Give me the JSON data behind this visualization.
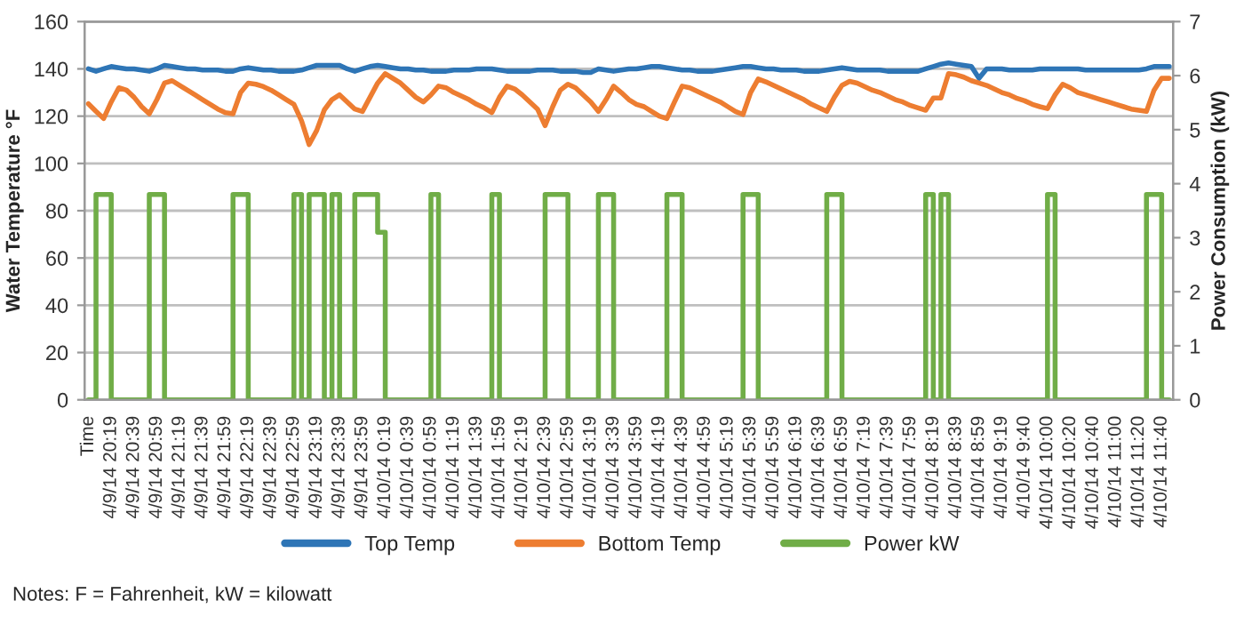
{
  "chart_data": {
    "type": "line",
    "ylabel": "Water Temperature °F",
    "y2label": "Power Consumption (kW)",
    "categories": [
      "Time",
      null,
      null,
      "4/9/14 20:19",
      null,
      null,
      "4/9/14 20:39",
      null,
      null,
      "4/9/14 20:59",
      null,
      null,
      "4/9/14 21:19",
      null,
      null,
      "4/9/14 21:39",
      null,
      null,
      "4/9/14 21:59",
      null,
      null,
      "4/9/14 22:19",
      null,
      null,
      "4/9/14 22:39",
      null,
      null,
      "4/9/14 22:59",
      null,
      null,
      "4/9/14 23:19",
      null,
      null,
      "4/9/14 23:39",
      null,
      null,
      "4/9/14 23:59",
      null,
      null,
      "4/10/14 0:19",
      null,
      null,
      "4/10/14 0:39",
      null,
      null,
      "4/10/14 0:59",
      null,
      null,
      "4/10/14 1:19",
      null,
      null,
      "4/10/14 1:39",
      null,
      null,
      "4/10/14 1:59",
      null,
      null,
      "4/10/14 2:19",
      null,
      null,
      "4/10/14 2:39",
      null,
      null,
      "4/10/14 2:59",
      null,
      null,
      "4/10/14 3:19",
      null,
      null,
      "4/10/14 3:39",
      null,
      null,
      "4/10/14 3:59",
      null,
      null,
      "4/10/14 4:19",
      null,
      null,
      "4/10/14 4:39",
      null,
      null,
      "4/10/14 4:59",
      null,
      null,
      "4/10/14 5:19",
      null,
      null,
      "4/10/14 5:39",
      null,
      null,
      "4/10/14 5:59",
      null,
      null,
      "4/10/14 6:19",
      null,
      null,
      "4/10/14 6:39",
      null,
      null,
      "4/10/14 6:59",
      null,
      null,
      "4/10/14 7:19",
      null,
      null,
      "4/10/14 7:39",
      null,
      null,
      "4/10/14 7:59",
      null,
      null,
      "4/10/14 8:19",
      null,
      null,
      "4/10/14 8:39",
      null,
      null,
      "4/10/14 8:59",
      null,
      null,
      "4/10/14 9:19",
      null,
      null,
      "4/10/14 9:40",
      null,
      null,
      "4/10/14 10:00",
      null,
      null,
      "4/10/14 10:20",
      null,
      null,
      "4/10/14 10:40",
      null,
      null,
      "4/10/14 11:00",
      null,
      null,
      "4/10/14 11:20",
      null,
      null,
      "4/10/14 11:40",
      null
    ],
    "ylim": [
      0,
      160
    ],
    "yticks": [
      0,
      20,
      40,
      60,
      80,
      100,
      120,
      140,
      160
    ],
    "y2lim": [
      0,
      7
    ],
    "y2ticks": [
      0,
      1,
      2,
      3,
      4,
      5,
      6,
      7
    ],
    "grid": "y",
    "legend": "bottom",
    "annotations": [
      "Notes: F = Fahrenheit, kW = kilowatt"
    ],
    "series": [
      {
        "name": "Top Temp",
        "color": "#2e75b6",
        "values": [
          140,
          139,
          140,
          141,
          140.5,
          140,
          140,
          139.5,
          139,
          140,
          141.5,
          141,
          140.5,
          140,
          140,
          139.5,
          139.5,
          139.5,
          139,
          139,
          140,
          140.5,
          140,
          139.5,
          139.5,
          139,
          139,
          139,
          139.5,
          140.5,
          141.5,
          141.5,
          141.5,
          141.5,
          140,
          139,
          140,
          141,
          141.5,
          141,
          140.5,
          140,
          140,
          139.5,
          139.5,
          139,
          139,
          139,
          139.5,
          139.5,
          139.5,
          140,
          140,
          140,
          139.5,
          139,
          139,
          139,
          139,
          139.5,
          139.5,
          139.5,
          139,
          139,
          139,
          138.5,
          138.5,
          140,
          139.5,
          139,
          139.5,
          140,
          140,
          140.5,
          141,
          141,
          140.5,
          140,
          139.5,
          139.5,
          139,
          139,
          139,
          139.5,
          140,
          140.5,
          141,
          141,
          140.5,
          140,
          140,
          139.5,
          139.5,
          139.5,
          139,
          139,
          139,
          139.5,
          140,
          140.5,
          140,
          139.5,
          139.5,
          139.5,
          139.5,
          139,
          139,
          139,
          139,
          139,
          140,
          141,
          142,
          142.5,
          142,
          141.5,
          141,
          136,
          140,
          140,
          140,
          139.5,
          139.5,
          139.5,
          139.5,
          140,
          140,
          140,
          140,
          140,
          140,
          139.5,
          139.5,
          139.5,
          139.5,
          139.5,
          139.5,
          139.5,
          139.5,
          140,
          141,
          141,
          141
        ]
      },
      {
        "name": "Bottom Temp",
        "color": "#ed7d31",
        "values": [
          125.2,
          122,
          119,
          126,
          132,
          131,
          128,
          124,
          121,
          127,
          134,
          135,
          133,
          131,
          129,
          127,
          125,
          123,
          121.5,
          121,
          130,
          134,
          133.5,
          132.5,
          131,
          129,
          127,
          125,
          118,
          108,
          114,
          122.7,
          127,
          129,
          126,
          123,
          122,
          128,
          134,
          138,
          136,
          134,
          131,
          128,
          126,
          129,
          132.7,
          132,
          130,
          128.5,
          127,
          125,
          123.5,
          121.5,
          128,
          132.7,
          131.5,
          129,
          126,
          123,
          116,
          124,
          131,
          133.5,
          132,
          129,
          126,
          122,
          127,
          132.7,
          130,
          127,
          125,
          124,
          122,
          120,
          119,
          126,
          132.7,
          132,
          130.5,
          129,
          127.5,
          126,
          124,
          122,
          120.7,
          130,
          135.7,
          134.5,
          133,
          131.5,
          130,
          128.5,
          127,
          125,
          123.5,
          122,
          128,
          133,
          134.7,
          134,
          132.5,
          131,
          130,
          128.5,
          127,
          126,
          124.5,
          123.5,
          122.5,
          127.7,
          127.7,
          138,
          137.5,
          136.5,
          135,
          134,
          133,
          131.5,
          130,
          129,
          127.5,
          126.5,
          125,
          124,
          123.2,
          129,
          133.5,
          132,
          130,
          129,
          128,
          127,
          126,
          125,
          124,
          123,
          122.5,
          122,
          131,
          136,
          136
        ]
      },
      {
        "name": "Power kW",
        "type": "step",
        "axis": "y2",
        "color": "#70ad47",
        "values": [
          0,
          3.8,
          3.8,
          0,
          0,
          0,
          0,
          0,
          3.8,
          3.8,
          0,
          0,
          0,
          0,
          0,
          0,
          0,
          0,
          0,
          3.8,
          3.8,
          0,
          0,
          0,
          0,
          0,
          0,
          3.8,
          0,
          3.8,
          3.8,
          0,
          3.8,
          0,
          0,
          3.8,
          3.8,
          3.8,
          3.1,
          0,
          0,
          0,
          0,
          0,
          0,
          3.8,
          0,
          0,
          0,
          0,
          0,
          0,
          0,
          3.8,
          0,
          0,
          0,
          0,
          0,
          0,
          3.8,
          3.8,
          3.8,
          0,
          0,
          0,
          0,
          3.8,
          3.8,
          0,
          0,
          0,
          0,
          0,
          0,
          0,
          3.8,
          3.8,
          0,
          0,
          0,
          0,
          0,
          0,
          0,
          0,
          3.8,
          3.8,
          0,
          0,
          0,
          0,
          0,
          0,
          0,
          0,
          0,
          3.8,
          3.8,
          0,
          0,
          0,
          0,
          0,
          0,
          0,
          0,
          0,
          0,
          0,
          3.8,
          0,
          3.8,
          0,
          0,
          0,
          0,
          0,
          0,
          0,
          0,
          0,
          0,
          0,
          0,
          0,
          3.8,
          0,
          0,
          0,
          0,
          0,
          0,
          0,
          0,
          0,
          0,
          0,
          0,
          3.8,
          3.8,
          0,
          0
        ]
      }
    ]
  }
}
